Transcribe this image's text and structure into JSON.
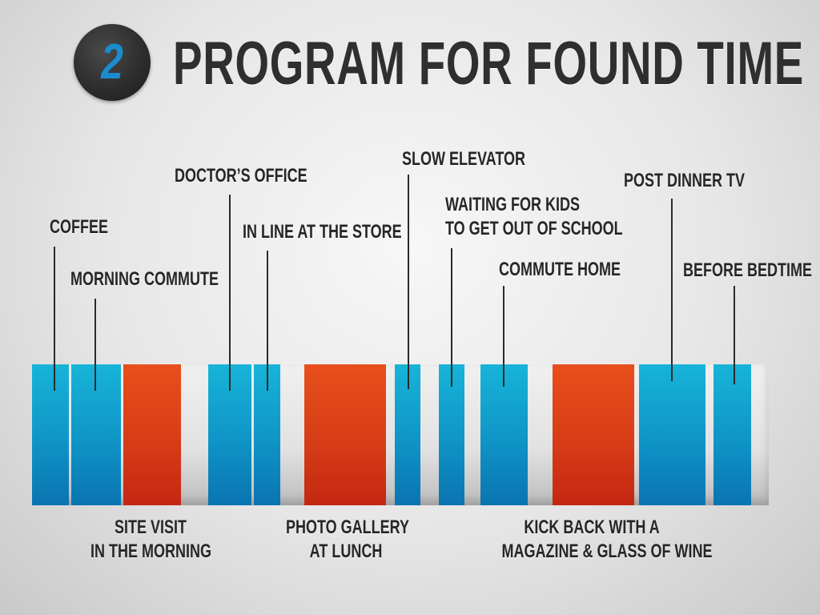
{
  "header": {
    "number": "2",
    "title": "PROGRAM FOR FOUND TIME"
  },
  "colors": {
    "short_slot": "#0f94c6",
    "long_slot": "#d63d17",
    "text": "#262626"
  },
  "top_labels": {
    "coffee": "COFFEE",
    "morning_commute": "MORNING COMMUTE",
    "doctors_office": "DOCTOR’S OFFICE",
    "in_line_store": "IN LINE AT THE STORE",
    "slow_elevator": "SLOW ELEVATOR",
    "waiting_kids_1": "WAITING FOR KIDS",
    "waiting_kids_2": "TO GET OUT OF SCHOOL",
    "commute_home": "COMMUTE HOME",
    "post_dinner_tv": "POST DINNER TV",
    "before_bedtime": "BEFORE BEDTIME"
  },
  "bottom_labels": {
    "site_visit_1": "SITE VISIT",
    "site_visit_2": "IN THE MORNING",
    "photo_gallery_1": "PHOTO GALLERY",
    "photo_gallery_2": "AT LUNCH",
    "kick_back_1": "KICK BACK WITH A",
    "kick_back_2": "MAGAZINE & GLASS OF WINE"
  }
}
